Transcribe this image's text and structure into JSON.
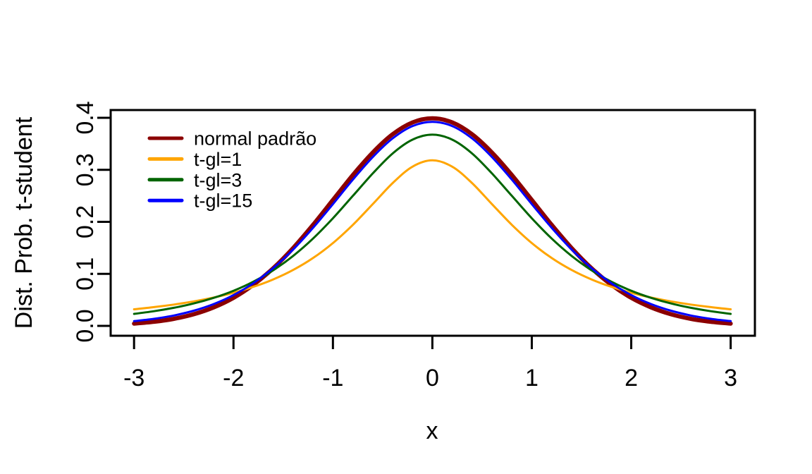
{
  "figure": {
    "background": "#FFFFFF",
    "foreground": "#000000"
  },
  "chart_data": {
    "type": "line",
    "title": "",
    "xlabel": "x",
    "ylabel": "Dist. Prob. t-student",
    "xlim": [
      -3.24,
      3.24
    ],
    "ylim": [
      -0.016,
      0.416
    ],
    "grid": false,
    "box": true,
    "legend_position": "top-left",
    "x_ticks": [
      -3,
      -2,
      -1,
      0,
      1,
      2,
      3
    ],
    "x_tick_labels": [
      "-3",
      "-2",
      "-1",
      "0",
      "1",
      "2",
      "3"
    ],
    "y_ticks": [
      0.0,
      0.1,
      0.2,
      0.3,
      0.4
    ],
    "y_tick_labels": [
      "0.0",
      "0.1",
      "0.2",
      "0.3",
      "0.4"
    ],
    "x": [
      -3.0,
      -2.8,
      -2.6,
      -2.4,
      -2.2,
      -2.0,
      -1.8,
      -1.6,
      -1.4,
      -1.2,
      -1.0,
      -0.8,
      -0.6,
      -0.4,
      -0.2,
      0.0,
      0.2,
      0.4,
      0.6,
      0.8,
      1.0,
      1.2,
      1.4,
      1.6,
      1.8,
      2.0,
      2.2,
      2.4,
      2.6,
      2.8,
      3.0
    ],
    "series": [
      {
        "name": "normal padrão",
        "color": "#8B0000",
        "lwd": 6,
        "values": [
          0.0044,
          0.0079,
          0.0136,
          0.0224,
          0.0355,
          0.054,
          0.079,
          0.1109,
          0.1497,
          0.1942,
          0.242,
          0.2897,
          0.3332,
          0.3683,
          0.391,
          0.3989,
          0.391,
          0.3683,
          0.3332,
          0.2897,
          0.242,
          0.1942,
          0.1497,
          0.1109,
          0.079,
          0.054,
          0.0355,
          0.0224,
          0.0136,
          0.0079,
          0.0044
        ]
      },
      {
        "name": "t-gl=1",
        "color": "#FFA500",
        "lwd": 3,
        "values": [
          0.0318,
          0.036,
          0.041,
          0.0471,
          0.0545,
          0.0637,
          0.0751,
          0.0894,
          0.1075,
          0.1304,
          0.1592,
          0.1941,
          0.234,
          0.2744,
          0.3061,
          0.3183,
          0.3061,
          0.2744,
          0.234,
          0.1941,
          0.1592,
          0.1304,
          0.1075,
          0.0894,
          0.0751,
          0.0637,
          0.0545,
          0.0471,
          0.041,
          0.036,
          0.0318
        ]
      },
      {
        "name": "t-gl=3",
        "color": "#006400",
        "lwd": 3,
        "values": [
          0.023,
          0.0282,
          0.0347,
          0.0431,
          0.0538,
          0.0675,
          0.085,
          0.107,
          0.1345,
          0.1679,
          0.2068,
          0.2497,
          0.293,
          0.3314,
          0.358,
          0.3676,
          0.358,
          0.3314,
          0.293,
          0.2497,
          0.2068,
          0.1679,
          0.1345,
          0.107,
          0.085,
          0.0675,
          0.0538,
          0.0431,
          0.0347,
          0.0282,
          0.023
        ]
      },
      {
        "name": "t-gl=15",
        "color": "#0000FF",
        "lwd": 3,
        "values": [
          0.0091,
          0.0136,
          0.02,
          0.0292,
          0.0419,
          0.0592,
          0.082,
          0.1112,
          0.1469,
          0.1885,
          0.2341,
          0.2809,
          0.3245,
          0.3604,
          0.3841,
          0.3923,
          0.3841,
          0.3604,
          0.3245,
          0.2809,
          0.2341,
          0.1885,
          0.1469,
          0.1112,
          0.082,
          0.0592,
          0.0419,
          0.0292,
          0.02,
          0.0136,
          0.0091
        ]
      }
    ],
    "legend": {
      "entries": [
        "normal padrão",
        "t-gl=1",
        "t-gl=3",
        "t-gl=15"
      ],
      "colors": [
        "#8B0000",
        "#FFA500",
        "#006400",
        "#0000FF"
      ],
      "swatch_lwd": 5
    }
  }
}
